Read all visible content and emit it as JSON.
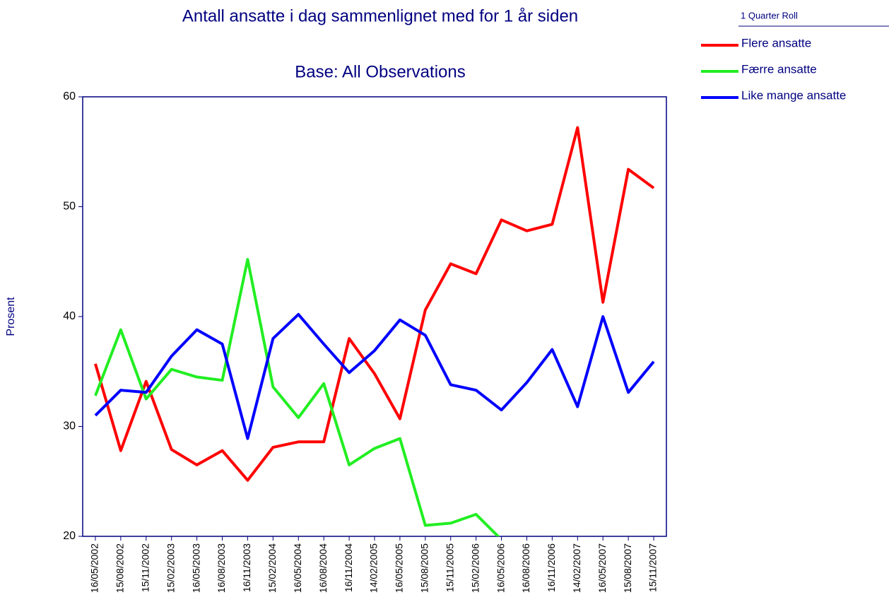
{
  "chart_data": {
    "type": "line",
    "title": "Antall ansatte i dag sammenlignet med for 1 år siden",
    "subtitle": "Base:  All Observations",
    "y_label": "Prosent",
    "legend_title": "1 Quarter Roll",
    "categories": [
      "16/05/2002",
      "15/08/2002",
      "15/11/2002",
      "15/02/2003",
      "16/05/2003",
      "16/08/2003",
      "16/11/2003",
      "15/02/2004",
      "16/05/2004",
      "16/08/2004",
      "16/11/2004",
      "14/02/2005",
      "16/05/2005",
      "15/08/2005",
      "15/11/2005",
      "15/02/2006",
      "16/05/2006",
      "16/08/2006",
      "16/11/2006",
      "14/02/2007",
      "16/05/2007",
      "15/08/2007",
      "15/11/2007"
    ],
    "series": [
      {
        "name": "Flere ansatte",
        "color": "#ff0000",
        "values": [
          35.7,
          27.8,
          34.1,
          27.9,
          26.5,
          27.8,
          25.1,
          28.1,
          28.6,
          28.6,
          38.0,
          34.8,
          30.7,
          40.6,
          44.8,
          43.9,
          48.8,
          47.8,
          48.4,
          57.2,
          41.3,
          53.4,
          51.7
        ]
      },
      {
        "name": "Færre ansatte",
        "color": "#22ee22",
        "values": [
          32.8,
          38.8,
          32.5,
          35.2,
          34.5,
          34.2,
          45.2,
          33.6,
          30.8,
          33.9,
          26.5,
          28.0,
          28.9,
          21.0,
          21.2,
          22.0,
          19.7,
          null,
          null,
          null,
          null,
          null,
          null
        ]
      },
      {
        "name": "Like mange ansatte",
        "color": "#0000ff",
        "values": [
          31.0,
          33.3,
          33.1,
          36.4,
          38.8,
          37.5,
          28.9,
          38.0,
          40.2,
          37.5,
          34.9,
          36.9,
          39.7,
          38.3,
          33.8,
          33.3,
          31.5,
          34.0,
          37.0,
          31.8,
          40.0,
          33.1,
          35.9
        ]
      }
    ],
    "ylim": [
      20,
      60
    ],
    "yticks": [
      20,
      30,
      40,
      50,
      60
    ],
    "grid": false
  }
}
